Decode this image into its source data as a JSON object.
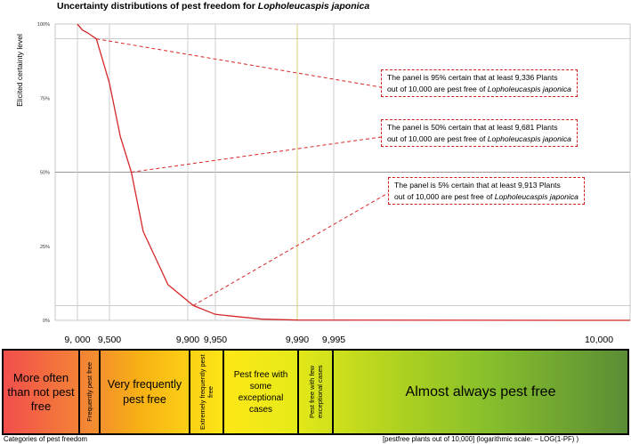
{
  "title_main": "Uncertainty distributions of pest freedom for ",
  "title_species": "Lopholeucaspis japonica",
  "chart_data": {
    "type": "line",
    "ylabel": "Elicited certainty level",
    "yticks": [
      "100%",
      "75%",
      "50%",
      "25%",
      "0%"
    ],
    "xticks": [
      "9, 000",
      "9,500",
      "9,900",
      "9,950",
      "9,990",
      "9,995",
      "10,000"
    ],
    "xnote": "[pestfree plants out of 10,000] (logarithmic scale: – LOG(1-PF) )",
    "curve_color": "#d62728",
    "series": [
      {
        "x": [
          9000,
          9050,
          9100,
          9200,
          9336,
          9500,
          9600,
          9681,
          9750,
          9850,
          9913,
          9950,
          9980,
          9990,
          10000
        ],
        "y": [
          1.0,
          0.99,
          0.98,
          0.97,
          0.95,
          0.8,
          0.62,
          0.5,
          0.3,
          0.12,
          0.05,
          0.02,
          0.004,
          0.001,
          0.0
        ]
      }
    ],
    "annotations": [
      {
        "quantile": "95%",
        "value": 9336,
        "x_point": 9336,
        "y_point": 0.95,
        "pre": "The panel is 95% certain that at least 9,336 Plants",
        "post": "out of 10,000 are pest free of ",
        "species": "Lopholeucaspis japonica"
      },
      {
        "quantile": "50%",
        "value": 9681,
        "x_point": 9681,
        "y_point": 0.5,
        "pre": "The panel is 50% certain that at least 9,681 Plants",
        "post": "out of 10,000 are pest free of ",
        "species": "Lopholeucaspis japonica"
      },
      {
        "quantile": "5%",
        "value": 9913,
        "x_point": 9913,
        "y_point": 0.05,
        "pre": "The panel is 5% certain that at least 9,913 Plants",
        "post": "out of 10,000 are pest free of ",
        "species": "Lopholeucaspis japonica"
      }
    ]
  },
  "categories": {
    "heading": "Categories of pest freedom",
    "items": [
      {
        "label": "More often than not pest free"
      },
      {
        "label": "Frequently pest free"
      },
      {
        "label": "Very frequently pest free"
      },
      {
        "label": "Extremely frequently pest free"
      },
      {
        "label": "Pest free with some exceptional cases"
      },
      {
        "label": "Pest free with few exceptional cases"
      },
      {
        "label": "Almost always pest free"
      }
    ]
  }
}
